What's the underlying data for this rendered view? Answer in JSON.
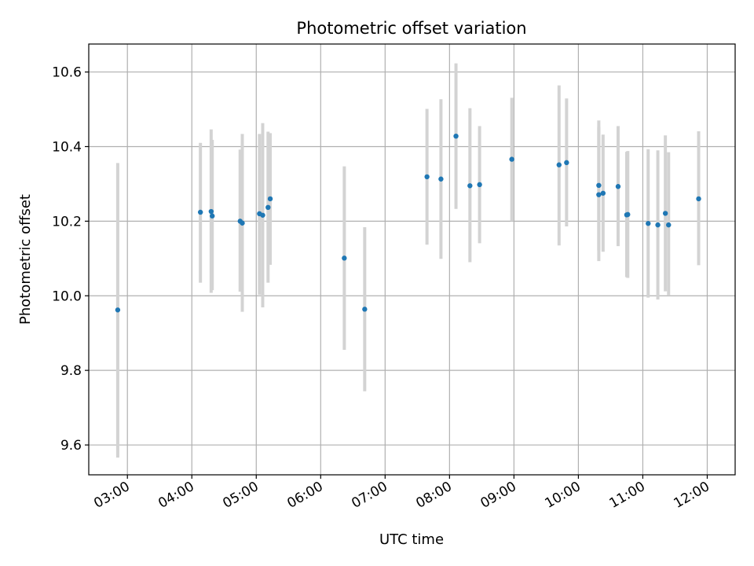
{
  "chart_data": {
    "type": "scatter",
    "title": "Photometric offset variation",
    "xlabel": "UTC time",
    "ylabel": "Photometric offset",
    "xlim": [
      "02:24",
      "12:26"
    ],
    "ylim": [
      9.52,
      10.675
    ],
    "grid": true,
    "x_ticks": [
      "03:00",
      "04:00",
      "05:00",
      "06:00",
      "07:00",
      "08:00",
      "09:00",
      "10:00",
      "11:00",
      "12:00"
    ],
    "y_ticks": [
      9.6,
      9.8,
      10.0,
      10.2,
      10.4,
      10.6
    ],
    "y_tick_labels": [
      "9.6",
      "9.8",
      "10.0",
      "10.2",
      "10.4",
      "10.6"
    ],
    "series": [
      {
        "marker_color": "#1f77b4",
        "errorbar_color": "#d3d3d3",
        "points": [
          {
            "x": "02:51",
            "y": 9.962,
            "lo": 9.566,
            "hi": 10.356
          },
          {
            "x": "04:08",
            "y": 10.224,
            "lo": 10.035,
            "hi": 10.41
          },
          {
            "x": "04:18",
            "y": 10.226,
            "lo": 10.008,
            "hi": 10.446
          },
          {
            "x": "04:19",
            "y": 10.214,
            "lo": 10.015,
            "hi": 10.418
          },
          {
            "x": "04:45",
            "y": 10.2,
            "lo": 10.011,
            "hi": 10.392
          },
          {
            "x": "04:47",
            "y": 10.195,
            "lo": 9.957,
            "hi": 10.434
          },
          {
            "x": "05:03",
            "y": 10.22,
            "lo": 10.003,
            "hi": 10.434
          },
          {
            "x": "05:06",
            "y": 10.216,
            "lo": 9.969,
            "hi": 10.463
          },
          {
            "x": "05:11",
            "y": 10.237,
            "lo": 10.035,
            "hi": 10.44
          },
          {
            "x": "05:13",
            "y": 10.26,
            "lo": 10.083,
            "hi": 10.436
          },
          {
            "x": "06:22",
            "y": 10.101,
            "lo": 9.855,
            "hi": 10.347
          },
          {
            "x": "06:41",
            "y": 9.964,
            "lo": 9.744,
            "hi": 10.184
          },
          {
            "x": "07:39",
            "y": 10.319,
            "lo": 10.137,
            "hi": 10.501
          },
          {
            "x": "07:52",
            "y": 10.313,
            "lo": 10.099,
            "hi": 10.527
          },
          {
            "x": "08:06",
            "y": 10.428,
            "lo": 10.233,
            "hi": 10.623
          },
          {
            "x": "08:19",
            "y": 10.295,
            "lo": 10.09,
            "hi": 10.503
          },
          {
            "x": "08:28",
            "y": 10.298,
            "lo": 10.141,
            "hi": 10.455
          },
          {
            "x": "08:58",
            "y": 10.366,
            "lo": 10.2,
            "hi": 10.531
          },
          {
            "x": "09:42",
            "y": 10.351,
            "lo": 10.135,
            "hi": 10.564
          },
          {
            "x": "09:49",
            "y": 10.357,
            "lo": 10.186,
            "hi": 10.529
          },
          {
            "x": "10:19",
            "y": 10.296,
            "lo": 10.121,
            "hi": 10.47
          },
          {
            "x": "10:19",
            "y": 10.271,
            "lo": 10.093,
            "hi": 10.453
          },
          {
            "x": "10:23",
            "y": 10.275,
            "lo": 10.118,
            "hi": 10.432
          },
          {
            "x": "10:37",
            "y": 10.293,
            "lo": 10.133,
            "hi": 10.455
          },
          {
            "x": "10:45",
            "y": 10.217,
            "lo": 10.05,
            "hi": 10.386
          },
          {
            "x": "10:46",
            "y": 10.218,
            "lo": 10.048,
            "hi": 10.388
          },
          {
            "x": "11:05",
            "y": 10.194,
            "lo": 9.995,
            "hi": 10.393
          },
          {
            "x": "11:14",
            "y": 10.19,
            "lo": 9.99,
            "hi": 10.39
          },
          {
            "x": "11:21",
            "y": 10.221,
            "lo": 10.012,
            "hi": 10.43
          },
          {
            "x": "11:24",
            "y": 10.19,
            "lo": 10.002,
            "hi": 10.385
          },
          {
            "x": "11:52",
            "y": 10.26,
            "lo": 10.082,
            "hi": 10.441
          }
        ]
      }
    ]
  }
}
